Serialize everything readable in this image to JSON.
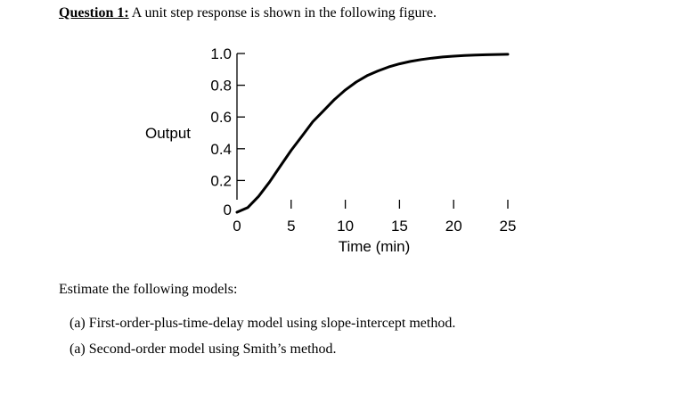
{
  "question": {
    "label": "Question 1:",
    "text": " A unit step response is shown in the following figure."
  },
  "chart_data": {
    "type": "line",
    "title": "",
    "xlabel": "Time (min)",
    "ylabel": "Output",
    "xlim": [
      0,
      25
    ],
    "ylim": [
      0,
      1.0
    ],
    "xticks": [
      0,
      5,
      10,
      15,
      20,
      25
    ],
    "xtick_labels": [
      "0",
      "5",
      "10",
      "15",
      "20",
      "25"
    ],
    "yticks": [
      0,
      0.2,
      0.4,
      0.6,
      0.8,
      1.0
    ],
    "ytick_labels": [
      "0",
      "0.2",
      "0.4",
      "0.6",
      "0.8",
      "1.0"
    ],
    "grid": false,
    "legend": "none",
    "series": [
      {
        "x": [
          0,
          1,
          2,
          3,
          4,
          5,
          6,
          7,
          8,
          9,
          10,
          11,
          12,
          13,
          14,
          15,
          16,
          17,
          18,
          19,
          20,
          21,
          22,
          23,
          24,
          25
        ],
        "y": [
          0,
          0.03,
          0.1,
          0.19,
          0.29,
          0.39,
          0.48,
          0.57,
          0.64,
          0.71,
          0.77,
          0.82,
          0.86,
          0.89,
          0.915,
          0.935,
          0.95,
          0.962,
          0.971,
          0.978,
          0.983,
          0.987,
          0.99,
          0.992,
          0.994,
          0.995
        ]
      }
    ]
  },
  "estimate_text": "Estimate the following models:",
  "models": [
    "(a) First-order-plus-time-delay model using slope-intercept method.",
    "(a) Second-order model using Smith’s method."
  ]
}
